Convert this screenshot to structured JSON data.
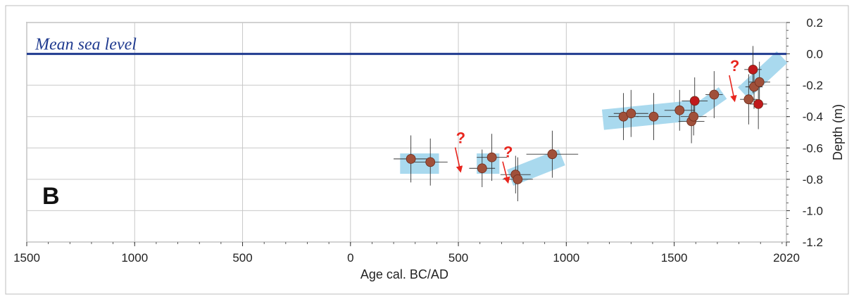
{
  "chart_data": {
    "type": "scatter",
    "panel_label": "B",
    "xlabel": "Age cal. BC/AD",
    "ylabel": "Depth (m)",
    "xlim": [
      -1500,
      2020
    ],
    "ylim": [
      -1.2,
      0.2
    ],
    "x_ticks": [
      -1500,
      -1000,
      -500,
      0,
      500,
      1000,
      1500,
      2020
    ],
    "x_tick_labels": [
      "1500",
      "1000",
      "500",
      "0",
      "500",
      "1000",
      "1500",
      "2020"
    ],
    "y_ticks": [
      0.2,
      0.0,
      -0.2,
      -0.4,
      -0.6,
      -0.8,
      -1.0,
      -1.2
    ],
    "y_tick_labels": [
      "0.2",
      "0.0",
      "-0.2",
      "-0.4",
      "-0.6",
      "-0.8",
      "-1.0",
      "-1.2"
    ],
    "grid": true,
    "y_axis_side": "right",
    "reference_line": {
      "label": "Mean sea level",
      "y": 0.0,
      "color": "#1f3a8f"
    },
    "colors": {
      "point_brown": "#a0503a",
      "point_red": "#c0191c",
      "trend_band": "#a9d9ee",
      "arrow": "#e8251d",
      "error_bar": "#333333"
    },
    "points": [
      {
        "x": 280,
        "y": -0.67,
        "xerr": 80,
        "yerr": 0.15,
        "color": "brown"
      },
      {
        "x": 370,
        "y": -0.69,
        "xerr": 80,
        "yerr": 0.15,
        "color": "brown"
      },
      {
        "x": 610,
        "y": -0.73,
        "xerr": 60,
        "yerr": 0.12,
        "color": "brown"
      },
      {
        "x": 655,
        "y": -0.66,
        "xerr": 70,
        "yerr": 0.15,
        "color": "brown"
      },
      {
        "x": 765,
        "y": -0.77,
        "xerr": 70,
        "yerr": 0.12,
        "color": "brown"
      },
      {
        "x": 775,
        "y": -0.8,
        "xerr": 70,
        "yerr": 0.14,
        "color": "brown"
      },
      {
        "x": 935,
        "y": -0.64,
        "xerr": 120,
        "yerr": 0.15,
        "color": "brown"
      },
      {
        "x": 1265,
        "y": -0.4,
        "xerr": 70,
        "yerr": 0.15,
        "color": "brown"
      },
      {
        "x": 1300,
        "y": -0.38,
        "xerr": 80,
        "yerr": 0.15,
        "color": "brown"
      },
      {
        "x": 1405,
        "y": -0.4,
        "xerr": 80,
        "yerr": 0.15,
        "color": "brown"
      },
      {
        "x": 1525,
        "y": -0.36,
        "xerr": 70,
        "yerr": 0.13,
        "color": "brown"
      },
      {
        "x": 1580,
        "y": -0.43,
        "xerr": 60,
        "yerr": 0.14,
        "color": "brown"
      },
      {
        "x": 1590,
        "y": -0.4,
        "xerr": 60,
        "yerr": 0.12,
        "color": "brown"
      },
      {
        "x": 1595,
        "y": -0.3,
        "xerr": 60,
        "yerr": 0.15,
        "color": "red"
      },
      {
        "x": 1685,
        "y": -0.26,
        "xerr": 40,
        "yerr": 0.15,
        "color": "brown"
      },
      {
        "x": 1845,
        "y": -0.29,
        "xerr": 40,
        "yerr": 0.16,
        "color": "brown"
      },
      {
        "x": 1865,
        "y": -0.1,
        "xerr": 40,
        "yerr": 0.15,
        "color": "red"
      },
      {
        "x": 1870,
        "y": -0.21,
        "xerr": 40,
        "yerr": 0.14,
        "color": "brown"
      },
      {
        "x": 1895,
        "y": -0.18,
        "xerr": 50,
        "yerr": 0.13,
        "color": "brown"
      },
      {
        "x": 1890,
        "y": -0.32,
        "xerr": 40,
        "yerr": 0.16,
        "color": "red"
      }
    ],
    "trend_bands": [
      {
        "x1": 230,
        "y1": -0.7,
        "x2": 410,
        "y2": -0.7,
        "thickness": 0.13
      },
      {
        "x1": 585,
        "y1": -0.7,
        "x2": 690,
        "y2": -0.7,
        "thickness": 0.13
      },
      {
        "x1": 740,
        "y1": -0.79,
        "x2": 980,
        "y2": -0.66,
        "thickness": 0.11
      },
      {
        "x1": 1170,
        "y1": -0.42,
        "x2": 1600,
        "y2": -0.36,
        "thickness": 0.13
      },
      {
        "x1": 1600,
        "y1": -0.37,
        "x2": 1725,
        "y2": -0.25,
        "thickness": 0.09
      },
      {
        "x1": 1820,
        "y1": -0.25,
        "x2": 2000,
        "y2": -0.02,
        "thickness": 0.1
      }
    ],
    "annotations": [
      {
        "text": "?",
        "x": 505,
        "y": -0.57,
        "arrow_to": [
          510,
          -0.75
        ]
      },
      {
        "text": "?",
        "x": 725,
        "y": -0.66,
        "arrow_to": [
          730,
          -0.82
        ]
      },
      {
        "text": "?",
        "x": 1775,
        "y": -0.11,
        "arrow_to": [
          1780,
          -0.3
        ]
      }
    ]
  }
}
